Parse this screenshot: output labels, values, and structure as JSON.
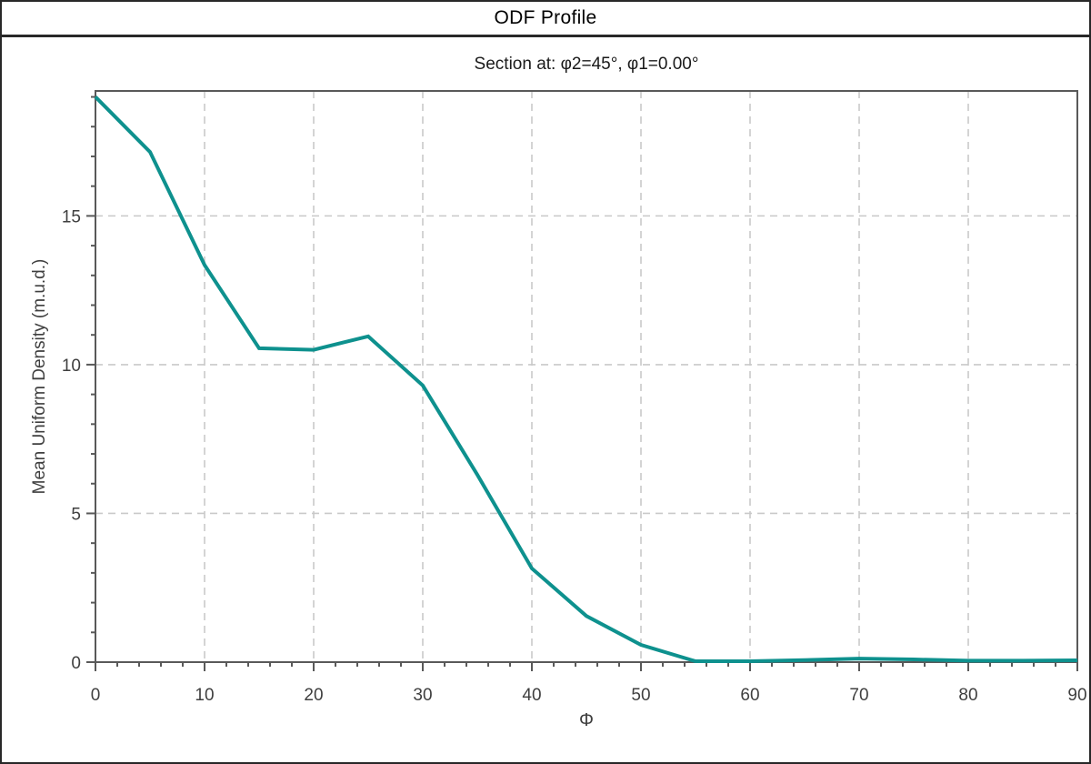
{
  "window": {
    "title": "ODF Profile"
  },
  "chart_data": {
    "type": "line",
    "title": "Section at: φ2=45°, φ1=0.00°",
    "xlabel": "Φ",
    "ylabel": "Mean Uniform Density (m.u.d.)",
    "xlim": [
      0,
      90
    ],
    "ylim": [
      0,
      19.2
    ],
    "x_major_ticks": [
      0,
      10,
      20,
      30,
      40,
      50,
      60,
      70,
      80,
      90
    ],
    "x_minor_step": 2,
    "y_major_ticks": [
      0,
      5,
      10,
      15
    ],
    "y_minor_step": 1,
    "grid": true,
    "legend": "none",
    "x": [
      0,
      5,
      10,
      15,
      20,
      25,
      30,
      35,
      40,
      45,
      50,
      55,
      60,
      65,
      70,
      75,
      80,
      85,
      90
    ],
    "values": [
      19.0,
      17.15,
      13.35,
      10.55,
      10.5,
      10.95,
      9.3,
      6.3,
      3.15,
      1.55,
      0.58,
      0.03,
      0.03,
      0.07,
      0.12,
      0.09,
      0.05,
      0.05,
      0.06
    ]
  },
  "colors": {
    "line": "#0e918e",
    "axis": "#595959",
    "grid": "#c9c9c9",
    "tick_label": "#3f3f3f",
    "frame": "#282828"
  }
}
